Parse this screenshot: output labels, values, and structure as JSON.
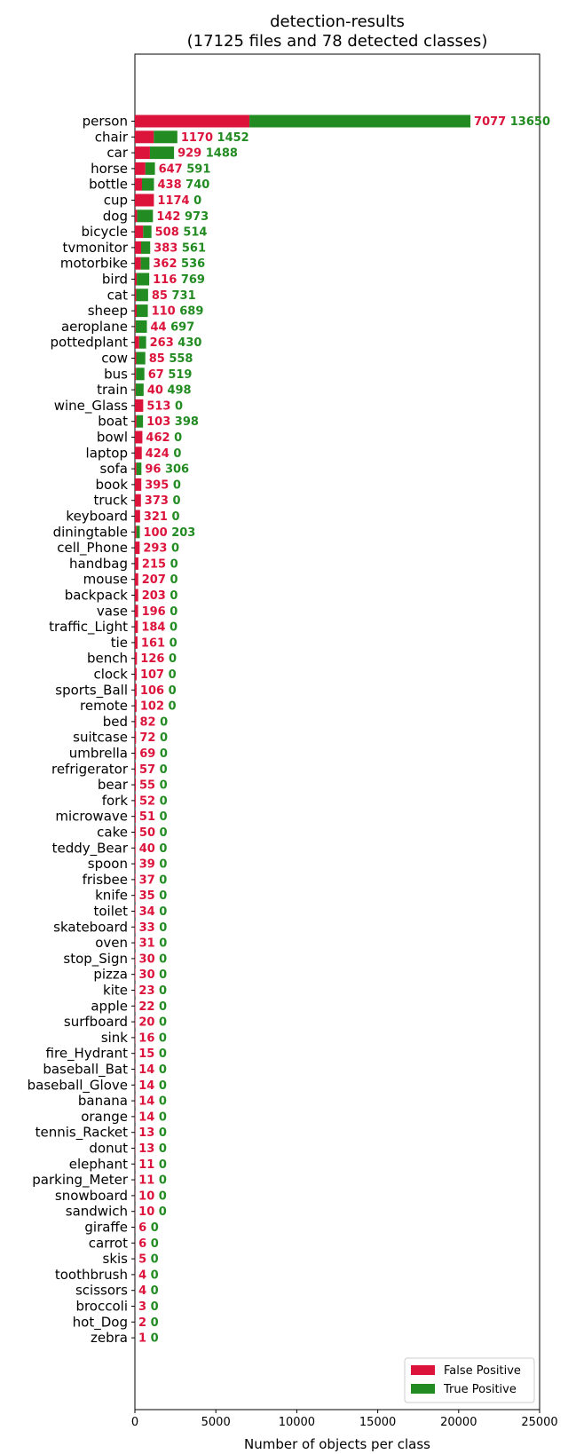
{
  "colors": {
    "false_positive": "#dc143c",
    "true_positive": "#228b22"
  },
  "chart_data": {
    "type": "bar",
    "orientation": "horizontal",
    "stacked": true,
    "title": "detection-results",
    "subtitle": "(17125 files and 78 detected classes)",
    "xlabel": "Number of objects per class",
    "ylabel": "",
    "xlim": [
      0,
      25000
    ],
    "xticks": [
      0,
      5000,
      10000,
      15000,
      20000,
      25000
    ],
    "grid": false,
    "legend_position": "bottom-right",
    "categories": [
      "person",
      "chair",
      "car",
      "horse",
      "bottle",
      "cup",
      "dog",
      "bicycle",
      "tvmonitor",
      "motorbike",
      "bird",
      "cat",
      "sheep",
      "aeroplane",
      "pottedplant",
      "cow",
      "bus",
      "train",
      "wine_Glass",
      "boat",
      "bowl",
      "laptop",
      "sofa",
      "book",
      "truck",
      "keyboard",
      "diningtable",
      "cell_Phone",
      "handbag",
      "mouse",
      "backpack",
      "vase",
      "traffic_Light",
      "tie",
      "bench",
      "clock",
      "sports_Ball",
      "remote",
      "bed",
      "suitcase",
      "umbrella",
      "refrigerator",
      "bear",
      "fork",
      "microwave",
      "cake",
      "teddy_Bear",
      "spoon",
      "frisbee",
      "knife",
      "toilet",
      "skateboard",
      "oven",
      "stop_Sign",
      "pizza",
      "kite",
      "apple",
      "surfboard",
      "sink",
      "fire_Hydrant",
      "baseball_Bat",
      "baseball_Glove",
      "banana",
      "orange",
      "tennis_Racket",
      "donut",
      "elephant",
      "parking_Meter",
      "snowboard",
      "sandwich",
      "giraffe",
      "carrot",
      "skis",
      "toothbrush",
      "scissors",
      "broccoli",
      "hot_Dog",
      "zebra"
    ],
    "series": [
      {
        "name": "False Positive",
        "color": "#dc143c",
        "values": [
          7077,
          1170,
          929,
          647,
          438,
          1174,
          142,
          508,
          383,
          362,
          116,
          85,
          110,
          44,
          263,
          85,
          67,
          40,
          513,
          103,
          462,
          424,
          96,
          395,
          373,
          321,
          100,
          293,
          215,
          207,
          203,
          196,
          184,
          161,
          126,
          107,
          106,
          102,
          82,
          72,
          69,
          57,
          55,
          52,
          51,
          50,
          40,
          39,
          37,
          35,
          34,
          33,
          31,
          30,
          30,
          23,
          22,
          20,
          16,
          15,
          14,
          14,
          14,
          14,
          13,
          13,
          11,
          11,
          10,
          10,
          6,
          6,
          5,
          4,
          4,
          3,
          2,
          1
        ]
      },
      {
        "name": "True Positive",
        "color": "#228b22",
        "values": [
          13650,
          1452,
          1488,
          591,
          740,
          0,
          973,
          514,
          561,
          536,
          769,
          731,
          689,
          697,
          430,
          558,
          519,
          498,
          0,
          398,
          0,
          0,
          306,
          0,
          0,
          0,
          203,
          0,
          0,
          0,
          0,
          0,
          0,
          0,
          0,
          0,
          0,
          0,
          0,
          0,
          0,
          0,
          0,
          0,
          0,
          0,
          0,
          0,
          0,
          0,
          0,
          0,
          0,
          0,
          0,
          0,
          0,
          0,
          0,
          0,
          0,
          0,
          0,
          0,
          0,
          0,
          0,
          0,
          0,
          0,
          0,
          0,
          0,
          0,
          0,
          0,
          0,
          0
        ]
      }
    ]
  }
}
